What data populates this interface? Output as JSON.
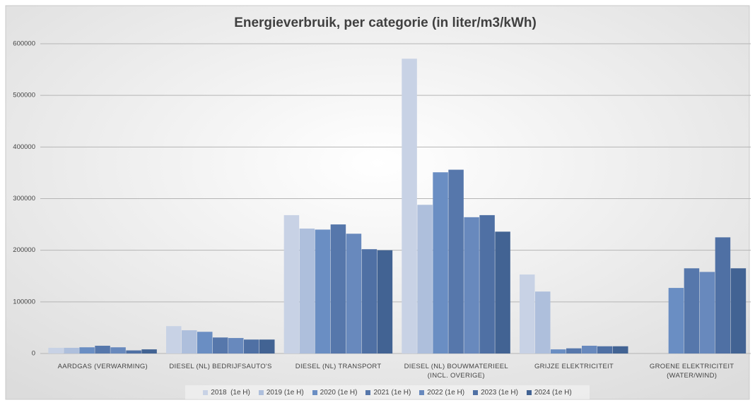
{
  "chart_data": {
    "type": "bar",
    "title": "Energieverbruik, per categorie (in liter/m3/kWh)",
    "categories": [
      "AARDGAS (VERWARMING)",
      "DIESEL (NL) BEDRIJFSAUTO'S",
      "DIESEL (NL) TRANSPORT",
      "DIESEL (NL) BOUWMATERIEEL\n(INCL. OVERIGE)",
      "GRIJZE ELEKTRICITEIT",
      "GROENE ELEKTRICITEIT\n(WATER/WIND)"
    ],
    "series": [
      {
        "name": "2018  (1e H)",
        "color": "#c8d2e5",
        "values": [
          11000,
          53000,
          268000,
          571000,
          153000,
          0
        ]
      },
      {
        "name": "2019 (1e H)",
        "color": "#aebfdc",
        "values": [
          11000,
          45000,
          242000,
          288000,
          120000,
          0
        ]
      },
      {
        "name": "2020 (1e H)",
        "color": "#6a8ec3",
        "values": [
          12000,
          42000,
          240000,
          351000,
          8000,
          127000
        ]
      },
      {
        "name": "2021 (1e H)",
        "color": "#5677ab",
        "values": [
          15000,
          31000,
          250000,
          356000,
          10000,
          165000
        ]
      },
      {
        "name": "2022 (1e H)",
        "color": "#6889bd",
        "values": [
          12000,
          30000,
          232000,
          264000,
          15000,
          158000
        ]
      },
      {
        "name": "2023 (1e H)",
        "color": "#4f70a4",
        "values": [
          6000,
          27000,
          202000,
          268000,
          14000,
          225000
        ]
      },
      {
        "name": "2024 (1e H)",
        "color": "#426393",
        "values": [
          8000,
          27000,
          200000,
          236000,
          14000,
          165000
        ]
      }
    ],
    "ylim": [
      0,
      600000
    ],
    "yticks": [
      0,
      100000,
      200000,
      300000,
      400000,
      500000,
      600000
    ],
    "grid": true,
    "legend": "bottom"
  }
}
